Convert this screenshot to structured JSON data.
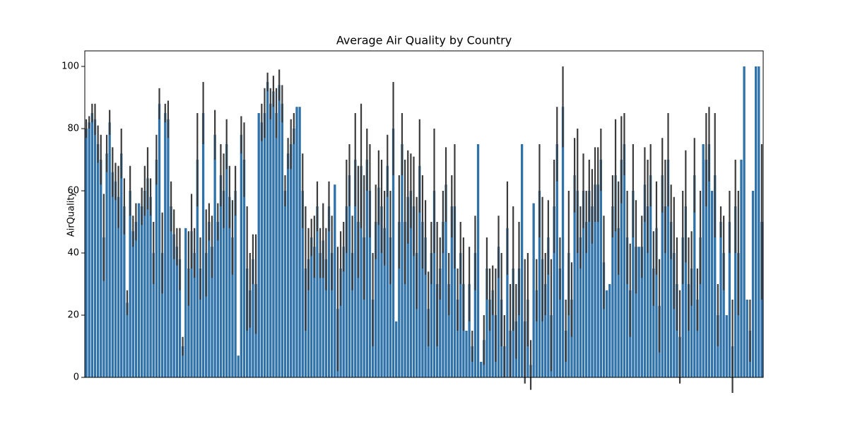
{
  "chart_data": {
    "type": "bar",
    "title": "Average Air Quality by Country",
    "y_label": "AirQuality",
    "color": "#2f72aa",
    "error_color": "#3b3b3b",
    "categories": [
      null,
      null,
      null,
      null,
      null,
      null,
      null,
      null,
      null,
      null,
      null,
      null,
      null,
      null,
      null,
      null,
      null,
      null,
      null,
      null,
      null,
      null,
      null,
      null,
      null,
      null,
      null,
      null,
      null,
      null,
      null,
      null,
      null,
      null,
      null,
      null,
      null,
      null,
      null,
      null,
      null,
      null,
      null,
      null,
      null,
      null,
      null,
      null,
      null,
      null,
      null,
      null,
      null,
      null,
      null,
      null,
      null,
      null,
      null,
      null,
      null,
      null,
      null,
      null,
      null,
      null,
      null,
      null,
      null,
      null,
      null,
      null,
      null,
      null,
      null,
      null,
      null,
      null,
      null,
      null,
      null,
      null,
      null,
      null,
      null,
      null,
      null,
      null,
      null,
      null,
      null,
      null,
      null,
      null,
      null,
      null,
      null,
      null,
      null,
      null,
      null,
      null,
      null,
      null,
      null,
      null,
      null,
      null,
      null,
      null,
      null,
      null,
      null,
      null,
      null,
      null,
      null,
      null,
      null,
      null,
      null,
      null,
      null,
      null,
      null,
      null,
      null,
      null,
      null,
      null,
      null,
      null,
      null,
      null,
      null,
      null,
      null,
      null,
      null,
      null,
      null,
      null,
      null,
      null,
      null,
      null,
      null,
      null,
      null,
      null,
      null,
      null,
      null,
      null,
      null,
      null,
      null,
      null,
      null,
      null,
      null,
      null,
      null,
      null,
      null,
      null,
      null,
      null,
      null,
      null,
      null,
      null,
      null,
      null,
      null,
      null,
      null,
      null,
      null,
      null,
      null,
      null,
      null,
      null,
      null,
      null,
      null,
      null,
      null,
      null,
      null,
      null,
      null,
      null,
      null,
      null,
      null,
      null,
      null,
      null,
      null,
      null,
      null,
      null,
      null,
      null,
      null,
      null,
      null,
      null,
      null,
      null,
      null,
      null,
      null,
      null,
      null,
      null,
      null,
      null,
      null,
      null,
      null,
      null,
      null,
      null,
      null,
      null,
      null,
      null,
      null,
      null
    ],
    "values": [
      80,
      82,
      85,
      83,
      75,
      70,
      45,
      72,
      82,
      66,
      63,
      58,
      72,
      55,
      24,
      60,
      47,
      50,
      56,
      55,
      60,
      64,
      58,
      40,
      70,
      88,
      40,
      85,
      83,
      55,
      46,
      42,
      38,
      10,
      48,
      35,
      47,
      40,
      70,
      35,
      85,
      40,
      50,
      42,
      78,
      50,
      65,
      60,
      75,
      58,
      45,
      60,
      7,
      78,
      70,
      35,
      28,
      38,
      30,
      85,
      82,
      85,
      95,
      88,
      92,
      85,
      94,
      88,
      60,
      72,
      75,
      80,
      87,
      87,
      60,
      35,
      38,
      45,
      42,
      55,
      40,
      44,
      38,
      55,
      40,
      62,
      22,
      35,
      42,
      55,
      65,
      40,
      70,
      50,
      68,
      45,
      70,
      60,
      25,
      50,
      61,
      55,
      48,
      68,
      45,
      80,
      18,
      50,
      75,
      50,
      58,
      60,
      55,
      40,
      68,
      50,
      45,
      22,
      40,
      60,
      30,
      35,
      50,
      62,
      30,
      55,
      55,
      25,
      40,
      30,
      15,
      30,
      10,
      40,
      75,
      5,
      12,
      35,
      25,
      28,
      20,
      42,
      25,
      10,
      48,
      15,
      35,
      18,
      35,
      75,
      18,
      25,
      4,
      56,
      28,
      60,
      38,
      30,
      45,
      20,
      55,
      75,
      35,
      87,
      15,
      40,
      25,
      65,
      60,
      45,
      60,
      50,
      60,
      55,
      62,
      62,
      70,
      37,
      28,
      30,
      55,
      65,
      48,
      70,
      75,
      45,
      28,
      60,
      42,
      42,
      42,
      62,
      55,
      65,
      35,
      48,
      23,
      65,
      55,
      70,
      50,
      40,
      30,
      13,
      45,
      55,
      30,
      35,
      65,
      25,
      45,
      75,
      70,
      75,
      60,
      65,
      20,
      50,
      40,
      20,
      50,
      10,
      55,
      40,
      70,
      100,
      25,
      15,
      60,
      100,
      100,
      50
    ],
    "errors": [
      3,
      2,
      3,
      5,
      6,
      8,
      14,
      6,
      4,
      8,
      6,
      10,
      8,
      9,
      4,
      8,
      5,
      6,
      0,
      6,
      8,
      10,
      6,
      10,
      8,
      5,
      13,
      3,
      6,
      8,
      8,
      6,
      10,
      3,
      0,
      12,
      12,
      8,
      15,
      10,
      10,
      14,
      6,
      10,
      8,
      6,
      10,
      12,
      8,
      10,
      12,
      8,
      0,
      6,
      12,
      20,
      12,
      8,
      16,
      0,
      6,
      8,
      3,
      5,
      5,
      8,
      5,
      6,
      5,
      5,
      8,
      5,
      0,
      0,
      12,
      20,
      10,
      6,
      10,
      8,
      8,
      12,
      10,
      8,
      12,
      0,
      20,
      12,
      8,
      15,
      10,
      12,
      15,
      18,
      20,
      20,
      10,
      15,
      15,
      12,
      12,
      15,
      12,
      10,
      15,
      15,
      0,
      15,
      10,
      20,
      15,
      12,
      16,
      18,
      15,
      15,
      12,
      12,
      10,
      20,
      20,
      10,
      10,
      12,
      10,
      10,
      20,
      10,
      10,
      15,
      0,
      12,
      5,
      12,
      0,
      0,
      8,
      10,
      10,
      8,
      15,
      10,
      15,
      10,
      15,
      15,
      20,
      12,
      15,
      0,
      20,
      15,
      8,
      0,
      10,
      15,
      20,
      10,
      12,
      18,
      15,
      12,
      10,
      13,
      10,
      20,
      12,
      12,
      20,
      10,
      12,
      10,
      10,
      12,
      12,
      12,
      10,
      15,
      0,
      0,
      10,
      18,
      15,
      14,
      10,
      15,
      15,
      15,
      15,
      0,
      10,
      12,
      15,
      10,
      12,
      15,
      15,
      12,
      15,
      15,
      12,
      18,
      15,
      15,
      15,
      18,
      15,
      12,
      12,
      10,
      15,
      0,
      15,
      12,
      0,
      20,
      10,
      5,
      12,
      0,
      10,
      15,
      15,
      20,
      0,
      0,
      0,
      10,
      0,
      0,
      0,
      25
    ],
    "ylim": [
      0,
      105
    ],
    "yticks": [
      0,
      20,
      40,
      60,
      80,
      100
    ]
  }
}
